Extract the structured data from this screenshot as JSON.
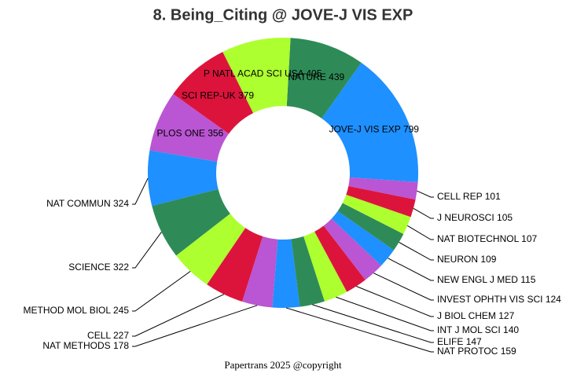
{
  "chart_data": {
    "type": "donut",
    "title": "8. Being_Citing @ JOVE-J VIS EXP",
    "categories": [
      "JOVE-J VIS EXP",
      "NATURE",
      "P NATL ACAD SCI USA",
      "SCI REP-UK",
      "PLOS ONE",
      "NAT COMMUN",
      "SCIENCE",
      "METHOD MOL BIOL",
      "CELL",
      "NAT METHODS",
      "NAT PROTOC",
      "ELIFE",
      "INT J MOL SCI",
      "J BIOL CHEM",
      "INVEST OPHTH VIS SCI",
      "NEW ENGL J MED",
      "NEURON",
      "NAT BIOTECHNOL",
      "J NEUROSCI",
      "CELL REP"
    ],
    "values": [
      799,
      439,
      405,
      379,
      356,
      324,
      322,
      245,
      227,
      178,
      159,
      147,
      140,
      127,
      124,
      115,
      109,
      107,
      105,
      101
    ],
    "colors": [
      "#1e90ff",
      "#2e8b57",
      "#adff2f",
      "#dc143c",
      "#ba55d3"
    ],
    "footer": "Papertrans 2025 @copyright"
  }
}
